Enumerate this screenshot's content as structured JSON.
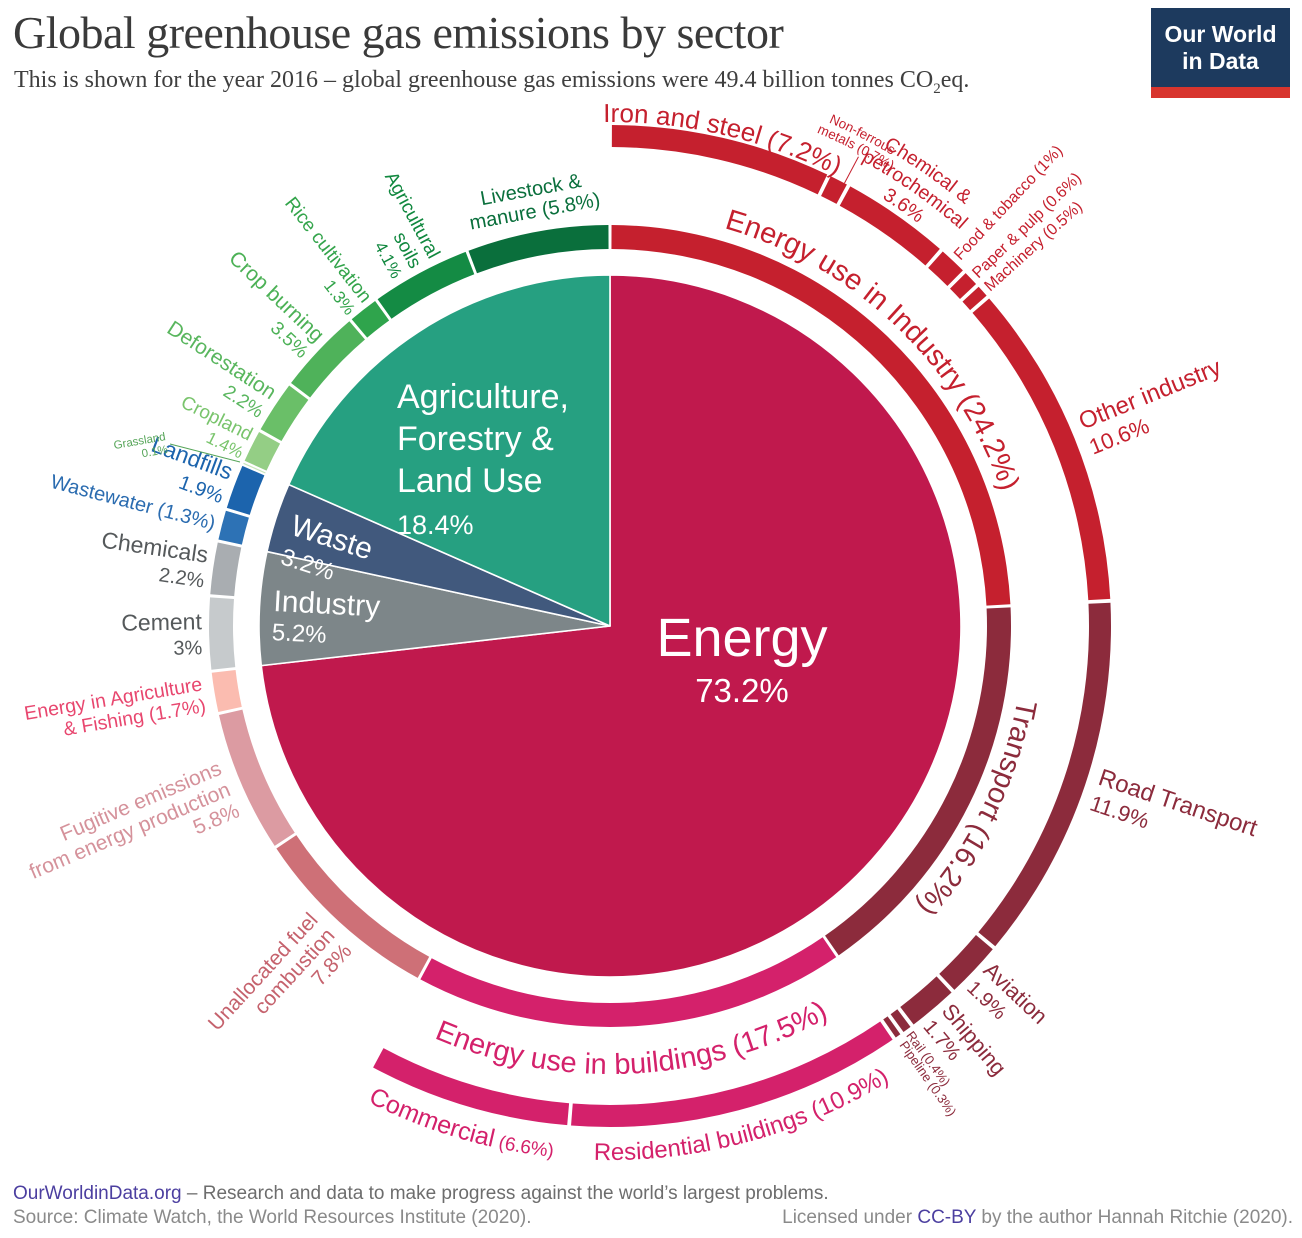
{
  "header": {
    "title": "Global greenhouse gas emissions by sector",
    "subtitle_pre": "This is shown for the year 2016 – global greenhouse gas emissions were 49.4 billion tonnes CO",
    "subtitle_sub": "2",
    "subtitle_post": "eq.",
    "logo_line1": "Our World",
    "logo_line2": "in Data"
  },
  "brand": {
    "logo_navy": "#1d3a5e",
    "logo_red": "#d8352e",
    "link_purple": "#4c3fa0"
  },
  "footer": {
    "site": "OurWorldinData.org",
    "tagline": "– Research and data to make progress against the world’s largest problems.",
    "source": "Source: Climate Watch, the World Resources Institute (2020).",
    "license_pre": "Licensed under ",
    "license_link": "CC-BY",
    "license_post": " by the author Hannah Ritchie  (2020)."
  },
  "chart_data": {
    "type": "pie",
    "subtype": "sunburst-donut",
    "title": "Global greenhouse gas emissions by sector",
    "year": 2016,
    "total_emissions": "49.4 billion tonnes CO2eq",
    "units": "percent of global greenhouse gas emissions",
    "legend_position": "none",
    "inner_sectors": [
      {
        "name": "Energy",
        "value": 73.2,
        "color": "#c0194d",
        "label_color": "#ffffff",
        "label_lines": [
          "Energy",
          "73.2%"
        ]
      },
      {
        "name": "Industry",
        "value": 5.2,
        "color": "#7d8689",
        "label_color": "#ffffff",
        "label_lines": [
          "Industry",
          "5.2%"
        ]
      },
      {
        "name": "Waste",
        "value": 3.2,
        "color": "#41597d",
        "label_color": "#ffffff",
        "label_lines": [
          "Waste",
          "3.2%"
        ]
      },
      {
        "name": "Agriculture, Forestry & Land Use",
        "value": 18.4,
        "color": "#26a081",
        "label_color": "#ffffff",
        "label_lines": [
          "Agriculture,",
          "Forestry &",
          "Land Use",
          "18.4%"
        ]
      }
    ],
    "ring_subsectors": [
      {
        "name": "Energy use in Industry",
        "value": 24.2,
        "color": "#c5202e",
        "label_lines": [
          "Energy use in Industry (24.2%)"
        ]
      },
      {
        "name": "Transport",
        "value": 16.2,
        "color": "#8c2b3c",
        "label_lines": [
          "Transport (16.2%)"
        ]
      },
      {
        "name": "Energy use in buildings",
        "value": 17.5,
        "color": "#d4216b",
        "label_lines": [
          "Energy use in buildings (17.5%)"
        ]
      },
      {
        "name": "Unallocated fuel combustion",
        "value": 7.8,
        "color": "#ce7077",
        "label_color": "#c5626d",
        "label_lines": [
          "Unallocated fuel",
          "combustion",
          "7.8%"
        ]
      },
      {
        "name": "Fugitive emissions from energy production",
        "value": 5.8,
        "color": "#dc9ba2",
        "label_color": "#d5929b",
        "label_lines": [
          "Fugitive emissions",
          "from energy production",
          "5.8%"
        ]
      },
      {
        "name": "Energy in Agriculture & Fishing",
        "value": 1.7,
        "color": "#fbbcb0",
        "label_color": "#e8476f",
        "label_lines": [
          "Energy in Agriculture",
          "& Fishing (1.7%)"
        ]
      },
      {
        "name": "Cement",
        "value": 3.0,
        "color": "#c6cacc",
        "label_color": "#55595b",
        "label_lines": [
          "Cement",
          "3%"
        ]
      },
      {
        "name": "Chemicals",
        "value": 2.2,
        "color": "#a9adb1",
        "label_color": "#55595b",
        "label_lines": [
          "Chemicals",
          "2.2%"
        ]
      },
      {
        "name": "Wastewater",
        "value": 1.3,
        "color": "#2d72b5",
        "label_color": "#2b6cb0",
        "label_lines": [
          "Wastewater (1.3%)"
        ]
      },
      {
        "name": "Landfills",
        "value": 1.9,
        "color": "#1c64ad",
        "label_lines": [
          "Landfills",
          "1.9%"
        ]
      },
      {
        "name": "Grassland",
        "value": 0.1,
        "color": "#c9e5bc",
        "label_color": "#56a559",
        "label_lines": [
          "Grassland",
          "0.1%"
        ]
      },
      {
        "name": "Cropland",
        "value": 1.4,
        "color": "#94ce85",
        "label_color": "#79c46c",
        "label_lines": [
          "Cropland",
          "1.4%"
        ]
      },
      {
        "name": "Deforestation",
        "value": 2.2,
        "color": "#6abf68",
        "label_color": "#59b65e",
        "label_lines": [
          "Deforestation",
          "2.2%"
        ]
      },
      {
        "name": "Crop burning",
        "value": 3.5,
        "color": "#4fb25a",
        "label_color": "#4cb156",
        "label_lines": [
          "Crop burning",
          "3.5%"
        ]
      },
      {
        "name": "Rice cultivation",
        "value": 1.3,
        "color": "#2fa44c",
        "label_color": "#33a44b",
        "label_lines": [
          "Rice cultivation",
          "1.3%"
        ]
      },
      {
        "name": "Agricultural soils",
        "value": 4.1,
        "color": "#148b44",
        "label_color": "#11883f",
        "label_lines": [
          "Agricultural",
          "soils",
          "4.1%"
        ]
      },
      {
        "name": "Livestock & manure",
        "value": 5.8,
        "color": "#0a6f3c",
        "label_lines": [
          "Livestock &",
          "manure (5.8%)"
        ]
      }
    ],
    "ring_subsubsectors": [
      {
        "name": "Iron and steel",
        "value": 7.2,
        "color": "#c5202e",
        "label_lines": [
          "Iron and steel (7.2%)"
        ]
      },
      {
        "name": "Non-ferrous metals",
        "value": 0.7,
        "color": "#c5202e",
        "label_lines": [
          "Non-ferrous",
          "metals (0.7%)"
        ]
      },
      {
        "name": "Chemical & petrochemical",
        "value": 3.6,
        "color": "#c5202e",
        "label_lines": [
          "Chemical &",
          "petrochemical",
          "3.6%"
        ]
      },
      {
        "name": "Food & tobacco",
        "value": 1.0,
        "color": "#c5202e",
        "label_lines": [
          "Food & tobacco (1%)"
        ]
      },
      {
        "name": "Paper & pulp",
        "value": 0.6,
        "color": "#c5202e",
        "label_lines": [
          "Paper & pulp (0.6%)"
        ]
      },
      {
        "name": "Machinery",
        "value": 0.5,
        "color": "#c5202e",
        "label_lines": [
          "Machinery (0.5%)"
        ]
      },
      {
        "name": "Other industry",
        "value": 10.6,
        "color": "#c5202e",
        "label_lines": [
          "Other industry",
          "10.6%"
        ]
      },
      {
        "name": "Road Transport",
        "value": 11.9,
        "color": "#8c2b3c",
        "label_lines": [
          "Road Transport",
          "11.9%"
        ]
      },
      {
        "name": "Aviation",
        "value": 1.9,
        "color": "#8c2b3c",
        "label_lines": [
          "Aviation",
          "1.9%"
        ]
      },
      {
        "name": "Shipping",
        "value": 1.7,
        "color": "#8c2b3c",
        "label_lines": [
          "Shipping",
          "1.7%"
        ]
      },
      {
        "name": "Rail",
        "value": 0.4,
        "color": "#8c2b3c",
        "label_lines": [
          "Rail (0.4%)"
        ]
      },
      {
        "name": "Pipeline",
        "value": 0.3,
        "color": "#8c2b3c",
        "label_lines": [
          "Pipeline (0.3%)"
        ]
      },
      {
        "name": "Residential buildings",
        "value": 10.9,
        "color": "#d4216b",
        "label_lines": [
          "Residential buildings (10.9%)"
        ]
      },
      {
        "name": "Commercial",
        "value": 6.6,
        "color": "#d4216b",
        "label_lines": [
          "Commercial",
          "(6.6%)"
        ]
      }
    ]
  }
}
